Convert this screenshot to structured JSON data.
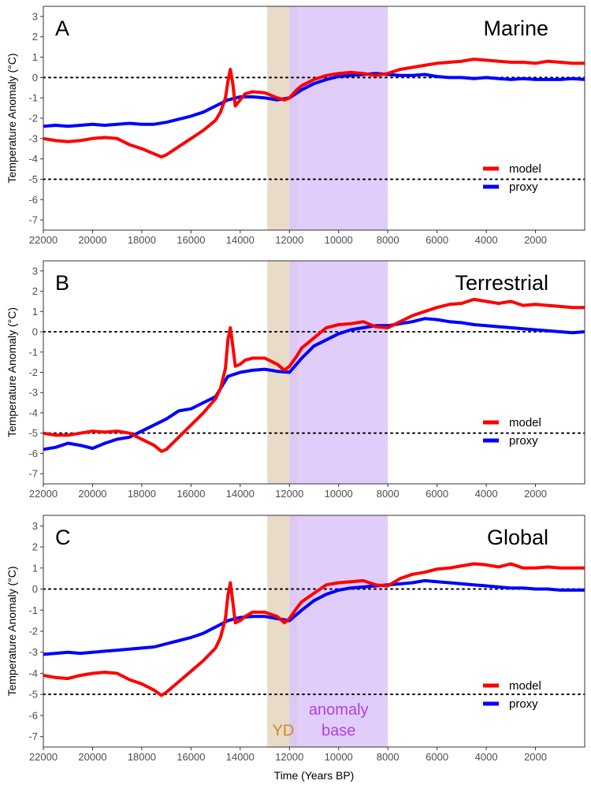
{
  "chart_data": [
    {
      "type": "line",
      "panel_letter": "A",
      "title": "Marine",
      "ylabel": "Temperature Anomaly (°C)",
      "xlabel": "",
      "xlim": [
        22000,
        0
      ],
      "x_reversed": true,
      "ylim": [
        -7.5,
        3.5
      ],
      "xticks": [
        22000,
        20000,
        18000,
        16000,
        14000,
        12000,
        10000,
        8000,
        6000,
        4000,
        2000
      ],
      "yticks": [
        3,
        2,
        1,
        0,
        -1,
        -2,
        -3,
        -4,
        -5,
        -6,
        -7
      ],
      "grid": false,
      "reference_lines_y": [
        0,
        -5
      ],
      "shaded_regions": [
        {
          "x": [
            12900,
            11700
          ],
          "color": "#e8dcc8"
        },
        {
          "x": [
            12000,
            8000
          ],
          "color": "#dcc4f8"
        }
      ],
      "legend": {
        "position": "bottom-right",
        "entries": [
          "model",
          "proxy"
        ]
      },
      "series": [
        {
          "name": "model",
          "color": "#ff0000",
          "x": [
            22000,
            21500,
            21000,
            20500,
            20000,
            19500,
            19000,
            18500,
            18000,
            17500,
            17200,
            17000,
            16500,
            16000,
            15500,
            15000,
            14800,
            14600,
            14500,
            14400,
            14300,
            14200,
            14000,
            13800,
            13500,
            13000,
            12500,
            12200,
            12000,
            11700,
            11500,
            11000,
            10500,
            10000,
            9500,
            9000,
            8500,
            8000,
            7500,
            7000,
            6500,
            6000,
            5500,
            5000,
            4500,
            4000,
            3500,
            3000,
            2500,
            2000,
            1500,
            1000,
            500,
            0
          ],
          "y": [
            -3.0,
            -3.1,
            -3.15,
            -3.1,
            -3.0,
            -2.95,
            -3.0,
            -3.3,
            -3.5,
            -3.75,
            -3.9,
            -3.8,
            -3.4,
            -3.0,
            -2.6,
            -2.1,
            -1.7,
            -1.0,
            -0.2,
            0.4,
            -0.3,
            -1.4,
            -1.1,
            -0.8,
            -0.7,
            -0.75,
            -1.0,
            -1.1,
            -1.0,
            -0.6,
            -0.4,
            -0.1,
            0.1,
            0.2,
            0.25,
            0.2,
            0.1,
            0.2,
            0.4,
            0.5,
            0.6,
            0.7,
            0.75,
            0.8,
            0.9,
            0.85,
            0.8,
            0.75,
            0.75,
            0.7,
            0.8,
            0.75,
            0.7,
            0.7
          ]
        },
        {
          "name": "proxy",
          "color": "#0000ff",
          "x": [
            22000,
            21500,
            21000,
            20500,
            20000,
            19500,
            19000,
            18500,
            18000,
            17500,
            17000,
            16500,
            16000,
            15500,
            15000,
            14500,
            14000,
            13500,
            13000,
            12500,
            12000,
            11500,
            11000,
            10500,
            10000,
            9500,
            9000,
            8500,
            8000,
            7500,
            7000,
            6500,
            6000,
            5500,
            5000,
            4500,
            4000,
            3500,
            3000,
            2500,
            2000,
            1500,
            1000,
            500,
            0
          ],
          "y": [
            -2.4,
            -2.35,
            -2.4,
            -2.35,
            -2.3,
            -2.35,
            -2.3,
            -2.25,
            -2.3,
            -2.3,
            -2.2,
            -2.05,
            -1.9,
            -1.7,
            -1.4,
            -1.1,
            -0.95,
            -0.95,
            -1.0,
            -1.1,
            -1.0,
            -0.6,
            -0.3,
            -0.1,
            0.05,
            0.1,
            0.15,
            0.2,
            0.15,
            0.1,
            0.1,
            0.15,
            0.05,
            0.0,
            0.0,
            -0.05,
            0.0,
            -0.05,
            -0.1,
            -0.05,
            -0.1,
            -0.1,
            -0.1,
            -0.05,
            -0.1
          ]
        }
      ]
    },
    {
      "type": "line",
      "panel_letter": "B",
      "title": "Terrestrial",
      "ylabel": "Temperature Anomaly (°C)",
      "xlabel": "",
      "xlim": [
        22000,
        0
      ],
      "x_reversed": true,
      "ylim": [
        -7.5,
        3.5
      ],
      "xticks": [
        22000,
        20000,
        18000,
        16000,
        14000,
        12000,
        10000,
        8000,
        6000,
        4000,
        2000
      ],
      "yticks": [
        3,
        2,
        1,
        0,
        -1,
        -2,
        -3,
        -4,
        -5,
        -6,
        -7
      ],
      "grid": false,
      "reference_lines_y": [
        0,
        -5
      ],
      "shaded_regions": [
        {
          "x": [
            12900,
            11700
          ],
          "color": "#e8dcc8"
        },
        {
          "x": [
            12000,
            8000
          ],
          "color": "#dcc4f8"
        }
      ],
      "legend": {
        "position": "bottom-right",
        "entries": [
          "model",
          "proxy"
        ]
      },
      "series": [
        {
          "name": "model",
          "color": "#ff0000",
          "x": [
            22000,
            21500,
            21000,
            20500,
            20000,
            19500,
            19000,
            18500,
            18000,
            17500,
            17200,
            17000,
            16500,
            16000,
            15500,
            15000,
            14800,
            14600,
            14500,
            14400,
            14300,
            14200,
            14000,
            13800,
            13500,
            13000,
            12500,
            12200,
            12000,
            11700,
            11500,
            11000,
            10500,
            10000,
            9500,
            9000,
            8500,
            8000,
            7500,
            7000,
            6500,
            6000,
            5500,
            5000,
            4500,
            4000,
            3500,
            3000,
            2500,
            2000,
            1500,
            1000,
            500,
            0
          ],
          "y": [
            -5.0,
            -5.1,
            -5.1,
            -5.0,
            -4.9,
            -4.95,
            -4.9,
            -5.0,
            -5.3,
            -5.6,
            -5.9,
            -5.8,
            -5.2,
            -4.6,
            -4.0,
            -3.3,
            -2.8,
            -1.8,
            -0.4,
            0.2,
            -0.7,
            -1.7,
            -1.6,
            -1.4,
            -1.3,
            -1.3,
            -1.6,
            -1.9,
            -1.7,
            -1.2,
            -0.8,
            -0.3,
            0.2,
            0.35,
            0.4,
            0.5,
            0.25,
            0.2,
            0.5,
            0.8,
            1.0,
            1.2,
            1.35,
            1.4,
            1.6,
            1.5,
            1.4,
            1.5,
            1.3,
            1.35,
            1.3,
            1.25,
            1.2,
            1.2
          ]
        },
        {
          "name": "proxy",
          "color": "#0000ff",
          "x": [
            22000,
            21500,
            21000,
            20500,
            20000,
            19500,
            19000,
            18500,
            18000,
            17500,
            17000,
            16500,
            16000,
            15500,
            15000,
            14500,
            14000,
            13500,
            13000,
            12500,
            12000,
            11500,
            11000,
            10500,
            10000,
            9500,
            9000,
            8500,
            8000,
            7500,
            7000,
            6500,
            6000,
            5500,
            5000,
            4500,
            4000,
            3500,
            3000,
            2500,
            2000,
            1500,
            1000,
            500,
            0
          ],
          "y": [
            -5.8,
            -5.7,
            -5.5,
            -5.6,
            -5.75,
            -5.5,
            -5.3,
            -5.2,
            -4.9,
            -4.6,
            -4.3,
            -3.9,
            -3.8,
            -3.5,
            -3.2,
            -2.2,
            -2.0,
            -1.9,
            -1.85,
            -1.95,
            -2.0,
            -1.3,
            -0.7,
            -0.4,
            -0.1,
            0.1,
            0.2,
            0.3,
            0.3,
            0.4,
            0.5,
            0.65,
            0.6,
            0.5,
            0.45,
            0.35,
            0.3,
            0.25,
            0.2,
            0.15,
            0.1,
            0.05,
            0.0,
            -0.05,
            0.0
          ]
        }
      ]
    },
    {
      "type": "line",
      "panel_letter": "C",
      "title": "Global",
      "ylabel": "Temperature Anomaly (°C)",
      "xlabel": "Time (Years BP)",
      "xlim": [
        22000,
        0
      ],
      "x_reversed": true,
      "ylim": [
        -7.5,
        3.5
      ],
      "xticks": [
        22000,
        20000,
        18000,
        16000,
        14000,
        12000,
        10000,
        8000,
        6000,
        4000,
        2000
      ],
      "yticks": [
        3,
        2,
        1,
        0,
        -1,
        -2,
        -3,
        -4,
        -5,
        -6,
        -7
      ],
      "grid": false,
      "reference_lines_y": [
        0,
        -5
      ],
      "shaded_regions": [
        {
          "x": [
            12900,
            11700
          ],
          "color": "#e8dcc8"
        },
        {
          "x": [
            12000,
            8000
          ],
          "color": "#dcc4f8"
        }
      ],
      "annotations": [
        {
          "text": "YD",
          "x": 12250,
          "y": -6.7,
          "color": "#d08a1c"
        },
        {
          "text": "anomaly",
          "x": 10000,
          "y": -5.7,
          "color": "#b040e0"
        },
        {
          "text": "base",
          "x": 10000,
          "y": -6.7,
          "color": "#b040e0"
        }
      ],
      "legend": {
        "position": "bottom-right",
        "entries": [
          "model",
          "proxy"
        ]
      },
      "series": [
        {
          "name": "model",
          "color": "#ff0000",
          "x": [
            22000,
            21500,
            21000,
            20500,
            20000,
            19500,
            19000,
            18500,
            18000,
            17500,
            17200,
            17000,
            16500,
            16000,
            15500,
            15000,
            14800,
            14600,
            14500,
            14400,
            14300,
            14200,
            14000,
            13800,
            13500,
            13000,
            12500,
            12200,
            12000,
            11700,
            11500,
            11000,
            10500,
            10000,
            9500,
            9000,
            8500,
            8000,
            7500,
            7000,
            6500,
            6000,
            5500,
            5000,
            4500,
            4000,
            3500,
            3000,
            2500,
            2000,
            1500,
            1000,
            500,
            0
          ],
          "y": [
            -4.1,
            -4.2,
            -4.25,
            -4.1,
            -4.0,
            -3.95,
            -4.0,
            -4.3,
            -4.5,
            -4.8,
            -5.05,
            -4.9,
            -4.4,
            -3.9,
            -3.4,
            -2.8,
            -2.3,
            -1.4,
            -0.3,
            0.3,
            -0.6,
            -1.6,
            -1.5,
            -1.3,
            -1.1,
            -1.1,
            -1.3,
            -1.6,
            -1.4,
            -0.9,
            -0.6,
            -0.2,
            0.2,
            0.3,
            0.35,
            0.4,
            0.2,
            0.15,
            0.5,
            0.7,
            0.8,
            0.95,
            1.0,
            1.1,
            1.2,
            1.15,
            1.05,
            1.2,
            1.0,
            1.0,
            1.05,
            1.0,
            1.0,
            1.0
          ]
        },
        {
          "name": "proxy",
          "color": "#0000ff",
          "x": [
            22000,
            21500,
            21000,
            20500,
            20000,
            19500,
            19000,
            18500,
            18000,
            17500,
            17000,
            16500,
            16000,
            15500,
            15000,
            14500,
            14000,
            13500,
            13000,
            12500,
            12000,
            11500,
            11000,
            10500,
            10000,
            9500,
            9000,
            8500,
            8000,
            7500,
            7000,
            6500,
            6000,
            5500,
            5000,
            4500,
            4000,
            3500,
            3000,
            2500,
            2000,
            1500,
            1000,
            500,
            0
          ],
          "y": [
            -3.1,
            -3.05,
            -3.0,
            -3.05,
            -3.0,
            -2.95,
            -2.9,
            -2.85,
            -2.8,
            -2.75,
            -2.6,
            -2.45,
            -2.3,
            -2.1,
            -1.8,
            -1.5,
            -1.35,
            -1.3,
            -1.3,
            -1.4,
            -1.5,
            -1.0,
            -0.55,
            -0.25,
            -0.05,
            0.05,
            0.1,
            0.15,
            0.2,
            0.25,
            0.3,
            0.4,
            0.35,
            0.3,
            0.25,
            0.2,
            0.15,
            0.1,
            0.05,
            0.05,
            0.0,
            0.0,
            -0.05,
            -0.05,
            -0.05
          ]
        }
      ]
    }
  ]
}
